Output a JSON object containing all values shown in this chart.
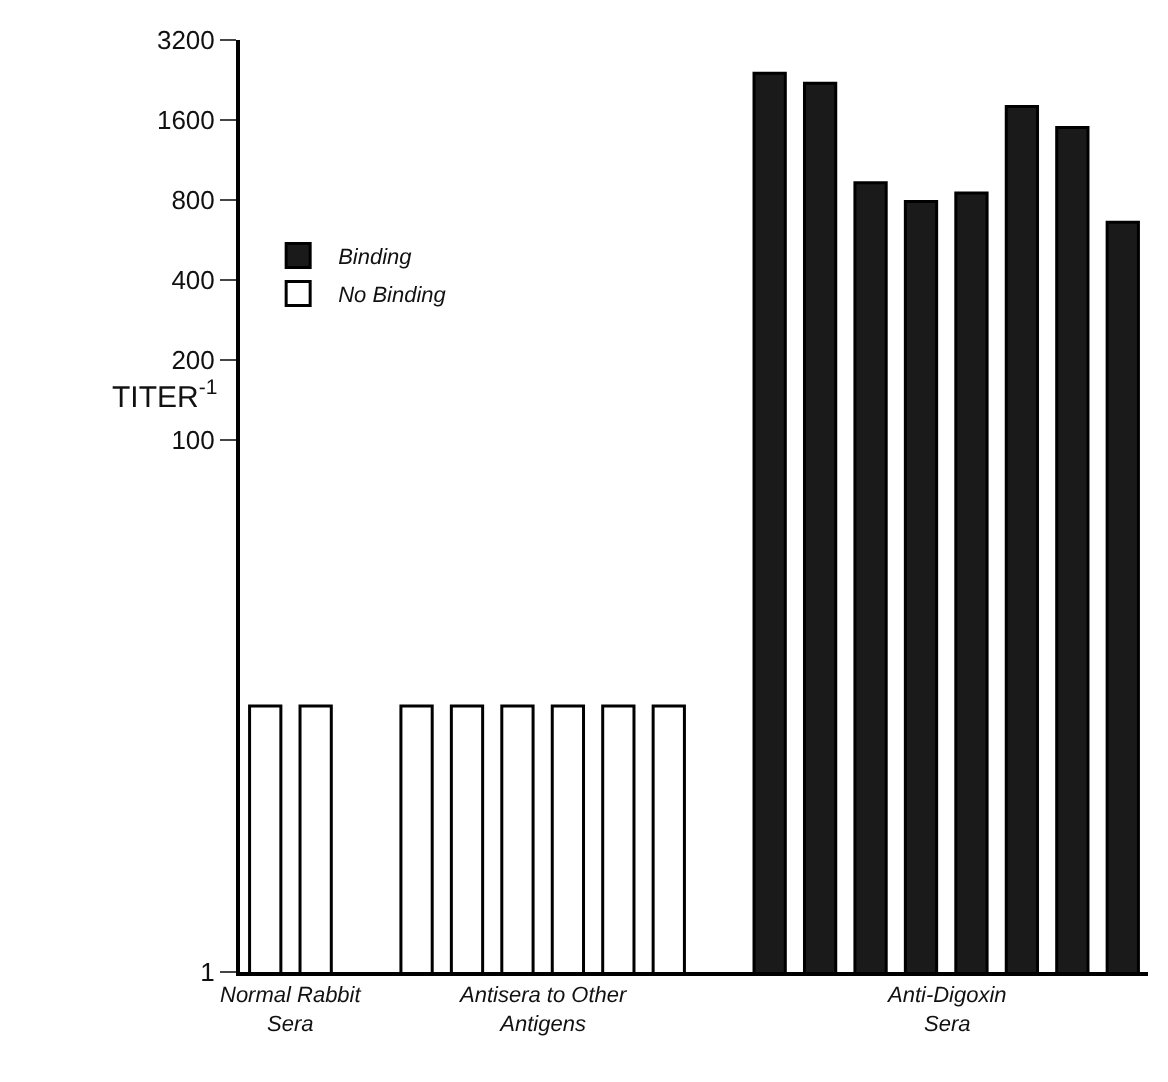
{
  "chart_data": {
    "type": "bar",
    "ylabel": "TITER$^{-1}$",
    "categories": [
      null,
      null,
      null,
      null,
      null,
      null,
      null,
      null,
      null,
      null,
      null,
      null,
      null,
      null,
      null,
      null,
      null,
      null
    ],
    "series": [
      {
        "name": "Binding",
        "color": "#1a1a1a",
        "values": [
          null,
          null,
          null,
          null,
          null,
          null,
          null,
          null,
          null,
          null,
          2400,
          2200,
          930,
          790,
          850,
          1800,
          1500,
          660
        ]
      },
      {
        "name": "No Binding",
        "color": "#ffffff",
        "values": [
          10,
          10,
          null,
          10,
          10,
          10,
          10,
          10,
          10,
          null,
          null,
          null,
          null,
          null,
          null,
          null,
          null,
          null
        ]
      }
    ],
    "ylim": [
      1,
      3200
    ],
    "yticks": [
      1,
      100,
      200,
      400,
      800,
      1600,
      3200
    ],
    "log": true,
    "legend": "top left",
    "tick_labels": "y",
    "annotations": [
      "Normal Rabbit Sera",
      "Antisera to Other Antigens",
      "Anti-Digoxin Sera"
    ]
  }
}
